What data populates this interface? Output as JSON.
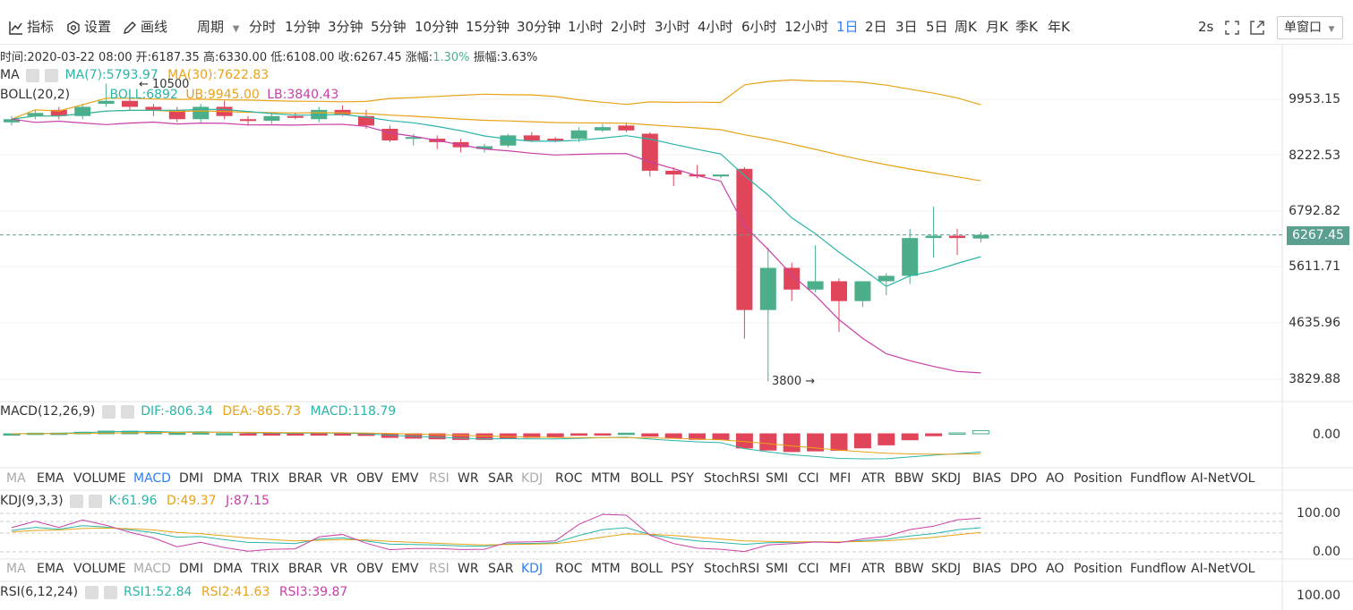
{
  "toolbar": {
    "indicator_label": "指标",
    "settings_label": "设置",
    "draw_label": "画线",
    "period_label": "周期",
    "periods": [
      "分时",
      "1分钟",
      "3分钟",
      "5分钟",
      "10分钟",
      "15分钟",
      "30分钟",
      "1小时",
      "2小时",
      "3小时",
      "4小时",
      "6小时",
      "12小时",
      "1日",
      "2日",
      "3日",
      "5日",
      "周K",
      "月K",
      "季K",
      "年K"
    ],
    "active_period": "1日",
    "refresh": "2s",
    "window_mode": "单窗口"
  },
  "ohlc_info": {
    "time": "时间:2020-03-22 08:00",
    "open": "开:6187.35",
    "high": "高:6330.00",
    "low": "低:6108.00",
    "close": "收:6267.45",
    "change": "涨幅:",
    "change_value": "1.30%",
    "amplitude": "振幅:3.63%"
  },
  "ma_legend": {
    "label": "MA",
    "ma7": "MA(7):5793.97",
    "ma30": "MA(30):7622.83"
  },
  "boll_legend": {
    "label": "BOLL(20,2)",
    "mid": "BOLL:6892",
    "ub": "UB:9945.00",
    "lb": "LB:3840.43"
  },
  "annotations": {
    "high": "← 10500",
    "low": "3800 →"
  },
  "price_axis": [
    "9953.15",
    "8222.53",
    "6792.82",
    "5611.71",
    "4635.96",
    "3829.88"
  ],
  "current_price": "6267.45",
  "macd_legend": {
    "label": "MACD(12,26,9)",
    "dif": "DIF:-806.34",
    "dea": "DEA:-865.73",
    "macd": "MACD:118.79"
  },
  "macd_axis": [
    "0.00"
  ],
  "indicator_tabs": [
    "MA",
    "EMA",
    "VOLUME",
    "MACD",
    "DMI",
    "DMA",
    "TRIX",
    "BRAR",
    "VR",
    "OBV",
    "EMV",
    "RSI",
    "WR",
    "SAR",
    "KDJ",
    "ROC",
    "MTM",
    "BOLL",
    "PSY",
    "StochRSI",
    "SMI",
    "CCI",
    "MFI",
    "ATR",
    "BBW",
    "SKDJ",
    "BIAS",
    "DPO",
    "AO",
    "Position",
    "Fundflow",
    "AI-NetVOL"
  ],
  "indicator_tabs2": [
    "MA",
    "EMA",
    "VOLUME",
    "MACD",
    "DMI",
    "DMA",
    "TRIX",
    "BRAR",
    "VR",
    "OBV",
    "EMV",
    "RSI",
    "WR",
    "SAR",
    "KDJ",
    "ROC",
    "MTM",
    "BOLL",
    "PSY",
    "StochRSI",
    "SMI",
    "CCI",
    "MFI",
    "ATR",
    "BBW",
    "SKDJ",
    "BIAS",
    "DPO",
    "AO",
    "Position",
    "Fundflow",
    "AI-NetVOL"
  ],
  "active_tab_1": "MACD",
  "active_tab_2": "KDJ",
  "kdj_legend": {
    "label": "KDJ(9,3,3)",
    "k": "K:61.96",
    "d": "D:49.37",
    "j": "J:87.15"
  },
  "kdj_axis": [
    "100.00",
    "0.00"
  ],
  "rsi_legend": {
    "label": "RSI(6,12,24)",
    "rsi1": "RSI1:52.84",
    "rsi2": "RSI2:41.63",
    "rsi3": "RSI3:39.87"
  },
  "rsi_axis": [
    "100.00"
  ],
  "colors": {
    "up": "#4caf8a",
    "down": "#e0455a",
    "ma7": "#2bb5a8",
    "ma30": "#e8a317",
    "boll_lb": "#c93fa8",
    "accent": "#2d7ff9"
  },
  "candles": [
    {
      "o": 9200,
      "h": 9400,
      "l": 9100,
      "c": 9300
    },
    {
      "o": 9400,
      "h": 9600,
      "l": 9300,
      "c": 9500
    },
    {
      "o": 9600,
      "h": 9700,
      "l": 9300,
      "c": 9400
    },
    {
      "o": 9400,
      "h": 9800,
      "l": 9300,
      "c": 9700
    },
    {
      "o": 9800,
      "h": 10500,
      "l": 9700,
      "c": 9900
    },
    {
      "o": 9900,
      "h": 10000,
      "l": 9600,
      "c": 9700
    },
    {
      "o": 9700,
      "h": 9800,
      "l": 9400,
      "c": 9600
    },
    {
      "o": 9600,
      "h": 9700,
      "l": 9200,
      "c": 9300
    },
    {
      "o": 9300,
      "h": 9800,
      "l": 9200,
      "c": 9700
    },
    {
      "o": 9700,
      "h": 9900,
      "l": 9300,
      "c": 9400
    },
    {
      "o": 9300,
      "h": 9400,
      "l": 9100,
      "c": 9250
    },
    {
      "o": 9250,
      "h": 9500,
      "l": 9150,
      "c": 9400
    },
    {
      "o": 9400,
      "h": 9500,
      "l": 9300,
      "c": 9350
    },
    {
      "o": 9300,
      "h": 9700,
      "l": 9200,
      "c": 9600
    },
    {
      "o": 9600,
      "h": 9750,
      "l": 9400,
      "c": 9450
    },
    {
      "o": 9400,
      "h": 9600,
      "l": 9000,
      "c": 9100
    },
    {
      "o": 9000,
      "h": 9100,
      "l": 8600,
      "c": 8650
    },
    {
      "o": 8700,
      "h": 8850,
      "l": 8500,
      "c": 8750
    },
    {
      "o": 8700,
      "h": 8800,
      "l": 8400,
      "c": 8600
    },
    {
      "o": 8600,
      "h": 8700,
      "l": 8300,
      "c": 8450
    },
    {
      "o": 8400,
      "h": 8550,
      "l": 8300,
      "c": 8480
    },
    {
      "o": 8500,
      "h": 8850,
      "l": 8450,
      "c": 8800
    },
    {
      "o": 8800,
      "h": 8900,
      "l": 8600,
      "c": 8650
    },
    {
      "o": 8700,
      "h": 8750,
      "l": 8600,
      "c": 8650
    },
    {
      "o": 8700,
      "h": 9050,
      "l": 8600,
      "c": 8950
    },
    {
      "o": 8950,
      "h": 9150,
      "l": 8900,
      "c": 9050
    },
    {
      "o": 9100,
      "h": 9200,
      "l": 8900,
      "c": 8950
    },
    {
      "o": 8850,
      "h": 8900,
      "l": 7650,
      "c": 7800
    },
    {
      "o": 7800,
      "h": 7900,
      "l": 7400,
      "c": 7700
    },
    {
      "o": 7700,
      "h": 7950,
      "l": 7600,
      "c": 7650
    },
    {
      "o": 7650,
      "h": 7700,
      "l": 7600,
      "c": 7700
    },
    {
      "o": 7850,
      "h": 7900,
      "l": 4400,
      "c": 4850
    },
    {
      "o": 4850,
      "h": 6000,
      "l": 3800,
      "c": 5600
    },
    {
      "o": 5600,
      "h": 5700,
      "l": 5000,
      "c": 5200
    },
    {
      "o": 5200,
      "h": 6050,
      "l": 5150,
      "c": 5350
    },
    {
      "o": 5350,
      "h": 5400,
      "l": 4500,
      "c": 5000
    },
    {
      "o": 5000,
      "h": 5350,
      "l": 4900,
      "c": 5350
    },
    {
      "o": 5350,
      "h": 5500,
      "l": 5100,
      "c": 5450
    },
    {
      "o": 5450,
      "h": 6400,
      "l": 5300,
      "c": 6200
    },
    {
      "o": 6200,
      "h": 6900,
      "l": 5800,
      "c": 6250
    },
    {
      "o": 6250,
      "h": 6400,
      "l": 5850,
      "c": 6200
    },
    {
      "o": 6190,
      "h": 6330,
      "l": 6108,
      "c": 6267
    }
  ]
}
